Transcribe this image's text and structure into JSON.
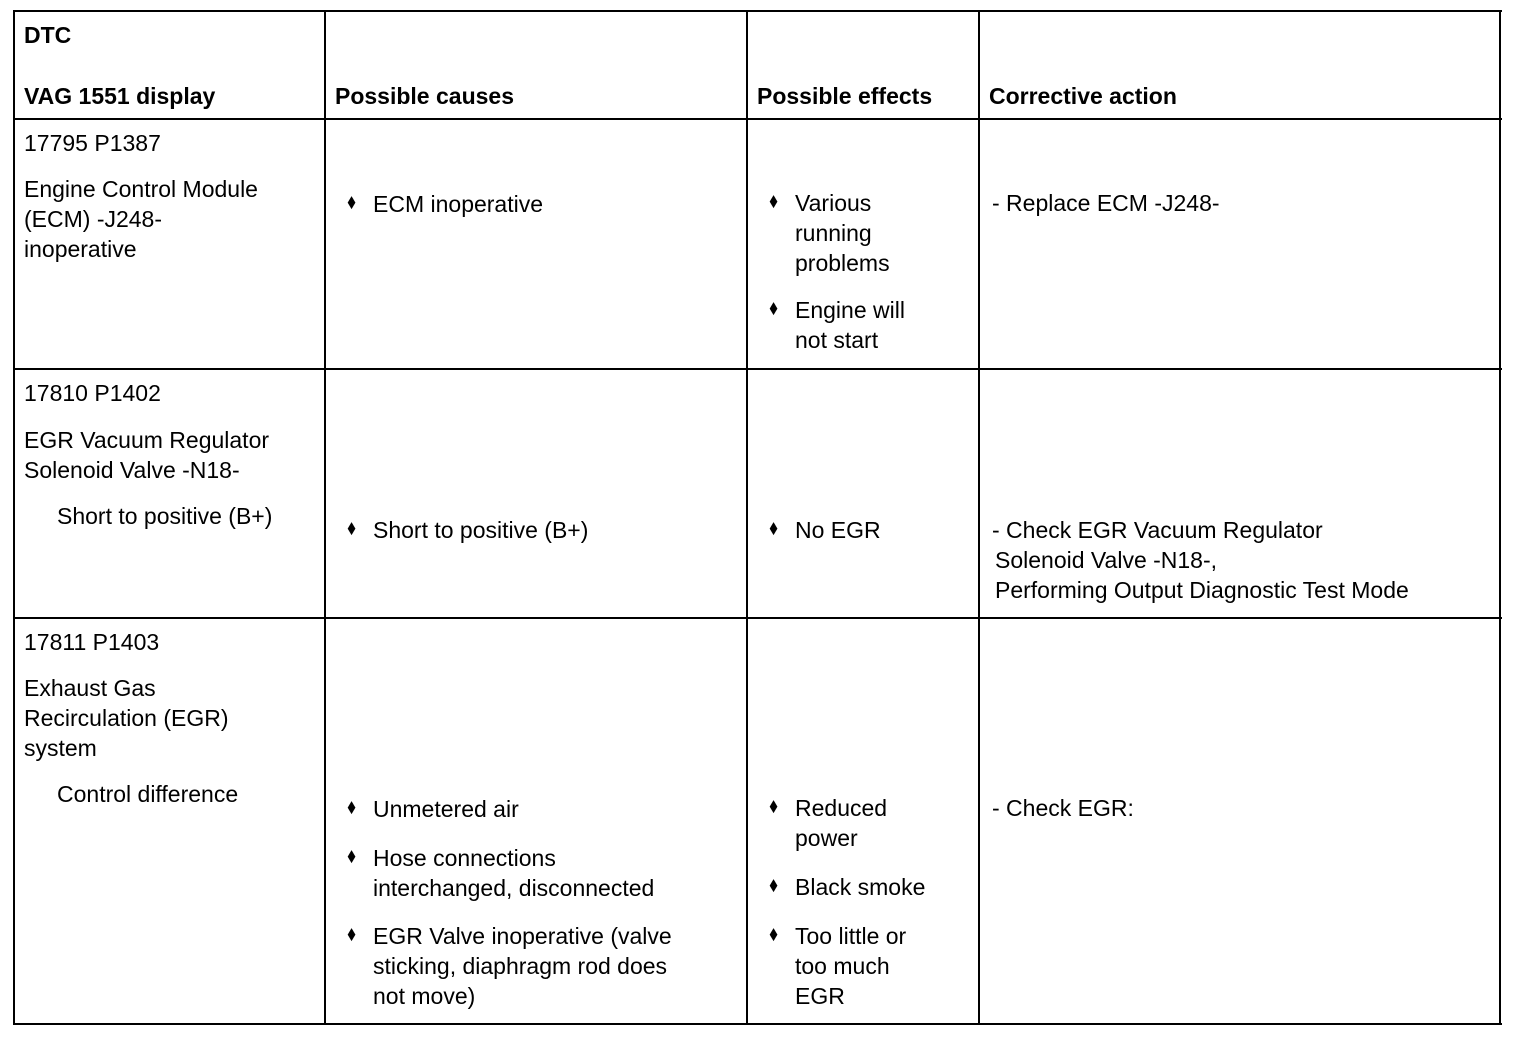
{
  "header": {
    "dtc": "DTC",
    "display": "VAG 1551 display",
    "causes": "Possible causes",
    "effects": "Possible effects",
    "action": "Corrective action"
  },
  "bullet_icon": "diamond-bullet",
  "rows": [
    {
      "code": "17795 P1387",
      "name": [
        "Engine Control Module",
        "(ECM) -J248-",
        "inoperative"
      ],
      "causes": [
        [
          "ECM inoperative"
        ]
      ],
      "effects": [
        [
          "Various",
          "running",
          "problems"
        ],
        [
          "Engine will",
          "not start"
        ]
      ],
      "action": [
        "- Replace ECM -J248-"
      ]
    },
    {
      "code": "17810 P1402",
      "name": [
        "EGR Vacuum Regulator",
        "Solenoid Valve -N18-"
      ],
      "sub": "Short to positive (B+)",
      "causes": [
        [
          "Short to positive (B+)"
        ]
      ],
      "effects": [
        [
          "No EGR"
        ]
      ],
      "action": [
        "- Check EGR Vacuum Regulator",
        "Solenoid Valve -N18-,",
        "Performing Output Diagnostic Test Mode"
      ]
    },
    {
      "code": "17811 P1403",
      "name": [
        "Exhaust Gas",
        "Recirculation (EGR)",
        "system"
      ],
      "sub": "Control difference",
      "causes": [
        [
          "Unmetered air"
        ],
        [
          "Hose connections",
          "interchanged, disconnected"
        ],
        [
          "EGR Valve inoperative (valve",
          "sticking, diaphragm rod does",
          "not move)"
        ]
      ],
      "effects": [
        [
          "Reduced",
          "power"
        ],
        [
          "Black smoke"
        ],
        [
          "Too little or",
          "too much",
          "EGR"
        ]
      ],
      "action": [
        "- Check EGR:"
      ]
    }
  ]
}
